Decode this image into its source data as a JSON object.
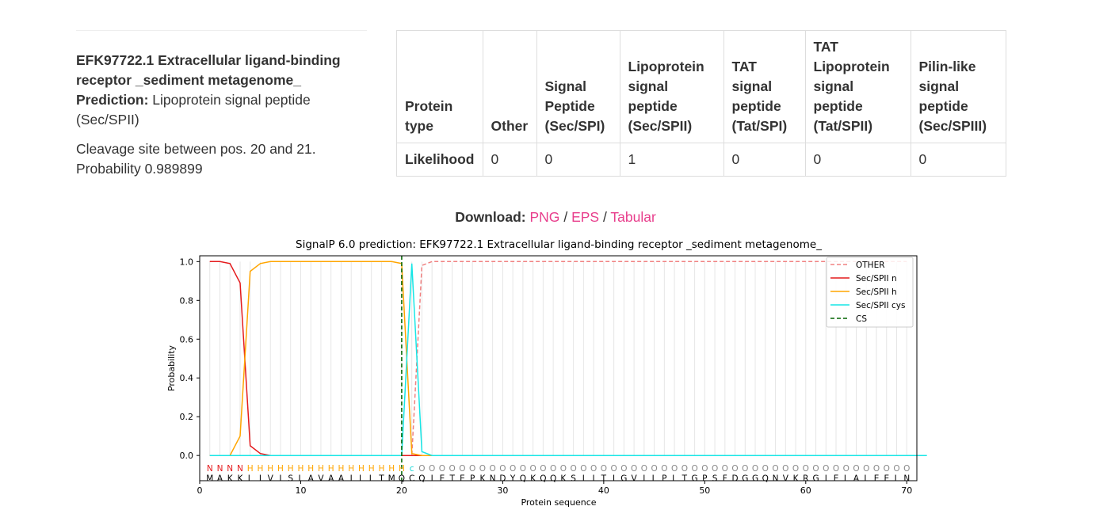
{
  "info": {
    "entry_name": "EFK97722.1 Extracellular ligand-binding receptor _sediment metagenome_",
    "prediction_label": "Prediction:",
    "prediction_value": "Lipoprotein signal peptide (Sec/SPII)",
    "cleavage_text": "Cleavage site between pos. 20 and 21.",
    "probability_text": "Probability 0.989899"
  },
  "table": {
    "headers": [
      "Protein type",
      "Other",
      "Signal Peptide (Sec/SPI)",
      "Lipoprotein signal peptide (Sec/SPII)",
      "TAT signal peptide (Tat/SPI)",
      "TAT Lipoprotein signal peptide (Tat/SPII)",
      "Pilin-like signal peptide (Sec/SPIII)"
    ],
    "row_label": "Likelihood",
    "values": [
      "0",
      "0",
      "1",
      "0",
      "0",
      "0"
    ]
  },
  "download": {
    "label": "Download:",
    "png": "PNG",
    "eps": "EPS",
    "tabular": "Tabular",
    "sep": "/"
  },
  "chart_data": {
    "type": "line",
    "title": "SignalP 6.0 prediction: EFK97722.1 Extracellular ligand-binding receptor _sediment metagenome_",
    "xlabel": "Protein sequence",
    "ylabel": "Probability",
    "xlim": [
      0,
      71
    ],
    "ylim": [
      -0.13,
      1.03
    ],
    "xticks": [
      0,
      10,
      20,
      30,
      40,
      50,
      60,
      70
    ],
    "yticks": [
      0.0,
      0.2,
      0.4,
      0.6,
      0.8,
      1.0
    ],
    "grid": "vertical at each residue",
    "legend_position": "top-right",
    "sequence": "MAKKLIVISLAVAAILLTMQCQIETEPKNDYQKQQKSIITIGVILPLTGPSFDGGQNVKRGIELALEELN",
    "region_labels": "NNNNHHHHHHHHHHHHHHHHcOOOOOOOOOOOOOOOOOOOOOOOOOOOOOOOOOOOOOOOOOOOOOOOOOO",
    "region_colors": {
      "N": "#e41a1c",
      "H": "#ffa500",
      "c": "#17d8d8",
      "O": "#888888"
    },
    "cs_position": 20,
    "series": [
      {
        "name": "OTHER",
        "color": "#f08080",
        "dash": true,
        "values": [
          0,
          0,
          0,
          0,
          0,
          0,
          0,
          0,
          0,
          0,
          0,
          0,
          0,
          0,
          0,
          0,
          0,
          0,
          0,
          0,
          0,
          0.98,
          1,
          1,
          1,
          1,
          1,
          1,
          1,
          1,
          1,
          1,
          1,
          1,
          1,
          1,
          1,
          1,
          1,
          1,
          1,
          1,
          1,
          1,
          1,
          1,
          1,
          1,
          1,
          1,
          1,
          1,
          1,
          1,
          1,
          1,
          1,
          1,
          1,
          1,
          1,
          1,
          1,
          1,
          1,
          1,
          1,
          1,
          1,
          1
        ]
      },
      {
        "name": "Sec/SPII n",
        "color": "#e41a1c",
        "dash": false,
        "values": [
          1,
          1,
          0.99,
          0.89,
          0.05,
          0.01,
          0,
          0,
          0,
          0,
          0,
          0,
          0,
          0,
          0,
          0,
          0,
          0,
          0,
          0,
          0,
          0,
          0,
          0,
          0,
          0,
          0,
          0,
          0,
          0,
          0,
          0,
          0,
          0,
          0,
          0,
          0,
          0,
          0,
          0,
          0,
          0,
          0,
          0,
          0,
          0,
          0,
          0,
          0,
          0,
          0,
          0,
          0,
          0,
          0,
          0,
          0,
          0,
          0,
          0,
          0,
          0,
          0,
          0,
          0,
          0,
          0,
          0,
          0,
          0
        ]
      },
      {
        "name": "Sec/SPII h",
        "color": "#ffa500",
        "dash": false,
        "values": [
          0,
          0,
          0,
          0.1,
          0.95,
          0.99,
          1,
          1,
          1,
          1,
          1,
          1,
          1,
          1,
          1,
          1,
          1,
          1,
          1,
          0.99,
          0.01,
          0,
          0,
          0,
          0,
          0,
          0,
          0,
          0,
          0,
          0,
          0,
          0,
          0,
          0,
          0,
          0,
          0,
          0,
          0,
          0,
          0,
          0,
          0,
          0,
          0,
          0,
          0,
          0,
          0,
          0,
          0,
          0,
          0,
          0,
          0,
          0,
          0,
          0,
          0,
          0,
          0,
          0,
          0,
          0,
          0,
          0,
          0,
          0,
          0
        ]
      },
      {
        "name": "Sec/SPII cys",
        "color": "#17e6e6",
        "dash": false,
        "values": [
          0,
          0,
          0,
          0,
          0,
          0,
          0,
          0,
          0,
          0,
          0,
          0,
          0,
          0,
          0,
          0,
          0,
          0,
          0,
          0,
          0.99,
          0.02,
          0,
          0,
          0,
          0,
          0,
          0,
          0,
          0,
          0,
          0,
          0,
          0,
          0,
          0,
          0,
          0,
          0,
          0,
          0,
          0,
          0,
          0,
          0,
          0,
          0,
          0,
          0,
          0,
          0,
          0,
          0,
          0,
          0,
          0,
          0,
          0,
          0,
          0,
          0,
          0,
          0,
          0,
          0,
          0,
          0,
          0,
          0,
          0,
          0,
          0
        ]
      },
      {
        "name": "CS",
        "color": "#006400",
        "dash": true,
        "values": []
      }
    ]
  }
}
